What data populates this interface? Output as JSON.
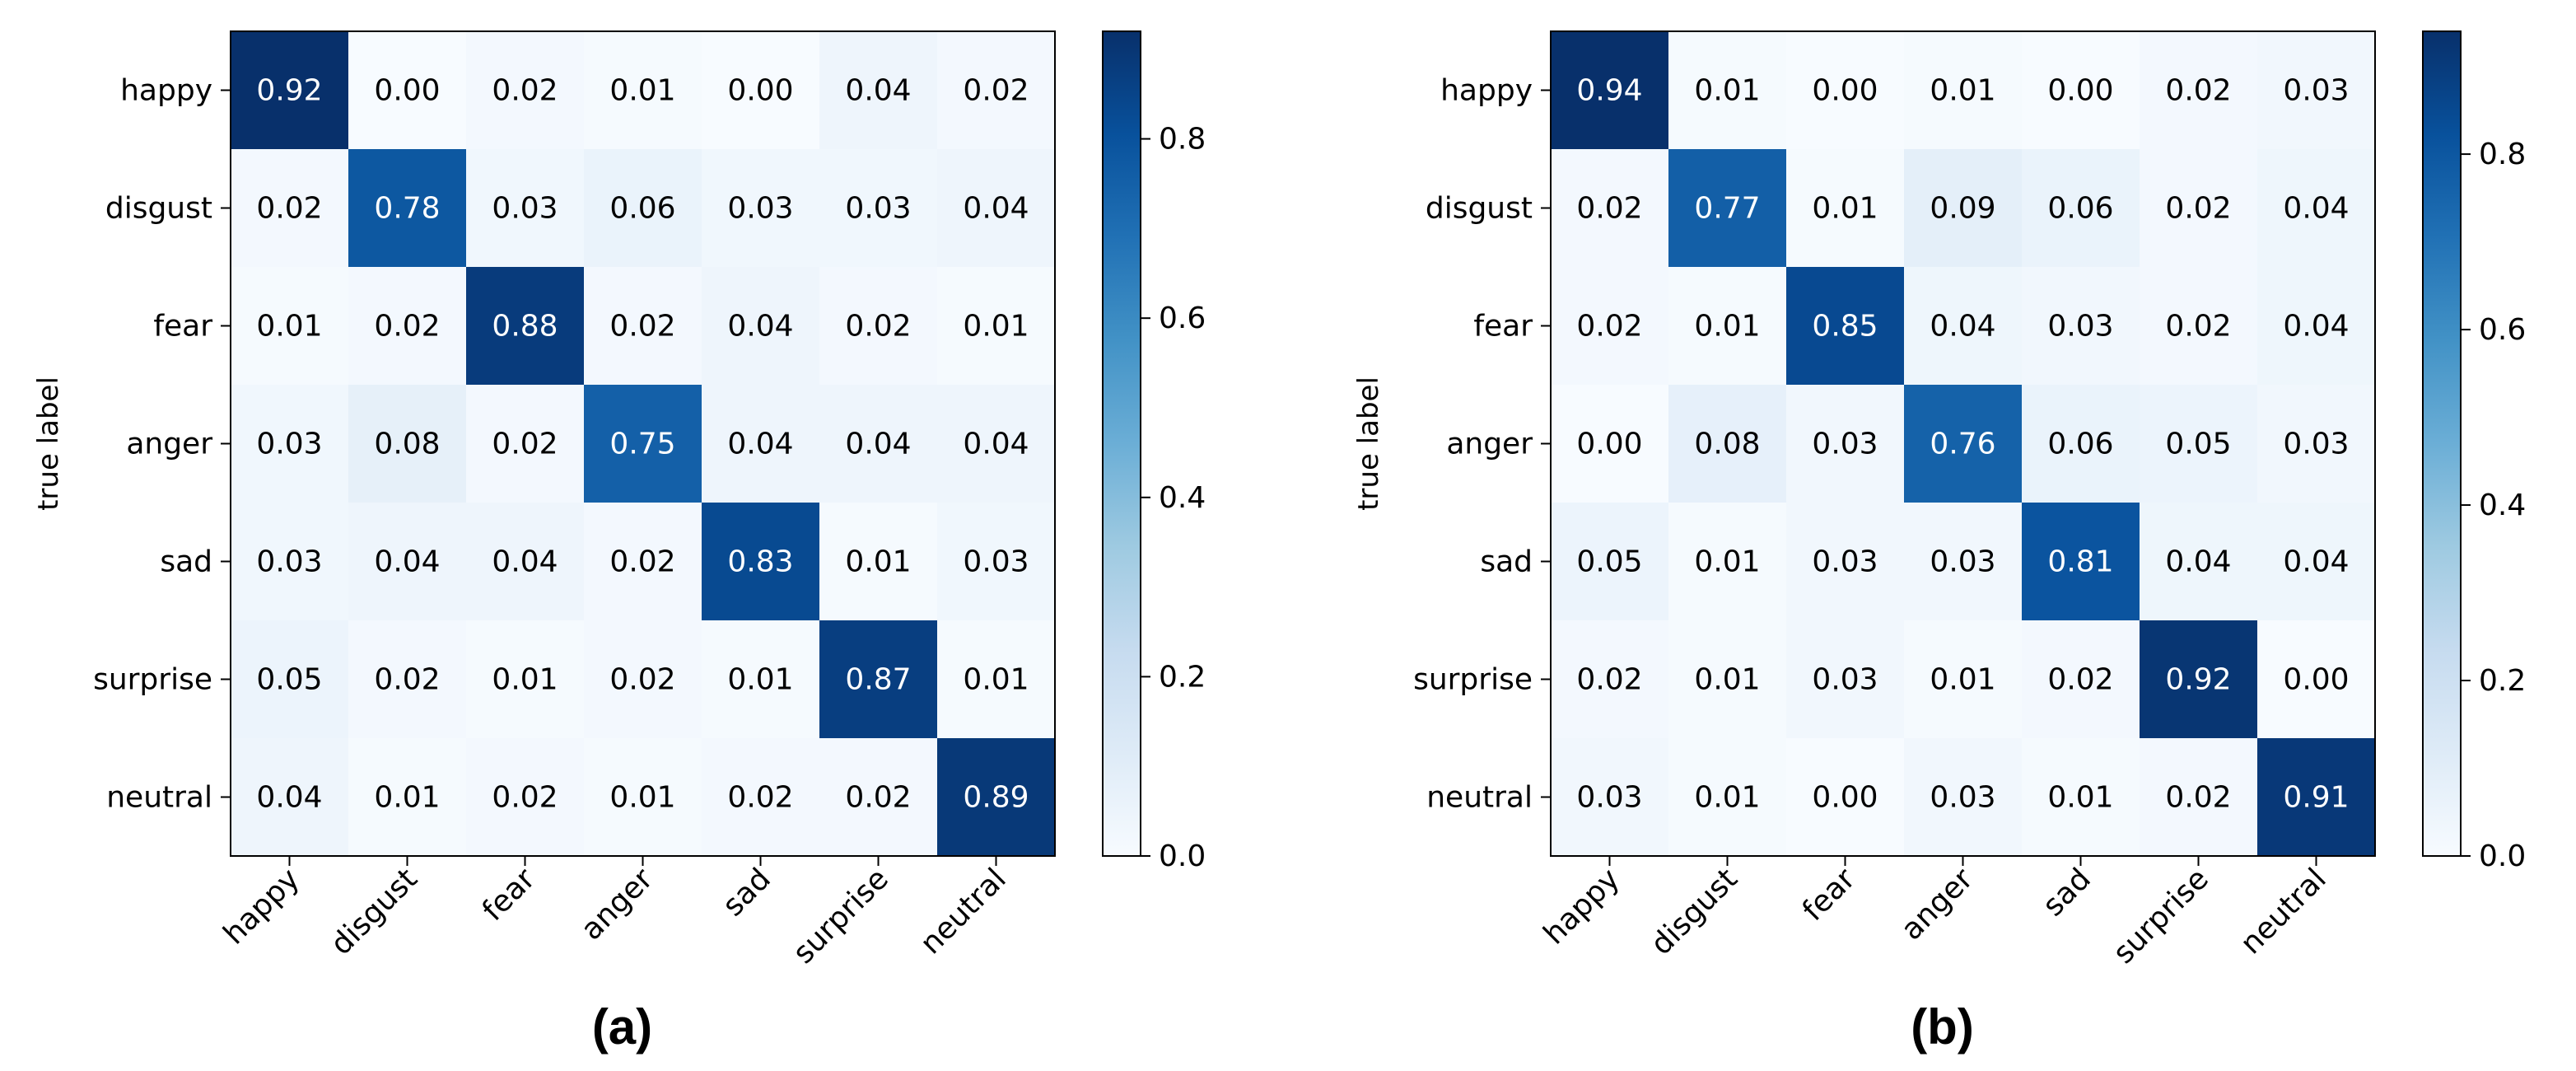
{
  "chart_data": [
    {
      "type": "heatmap",
      "panel_label": "(a)",
      "ylabel": "true label",
      "xlabel": "",
      "categories": [
        "happy",
        "disgust",
        "fear",
        "anger",
        "sad",
        "surprise",
        "neutral"
      ],
      "matrix": [
        [
          0.92,
          0.0,
          0.02,
          0.01,
          0.0,
          0.04,
          0.02
        ],
        [
          0.02,
          0.78,
          0.03,
          0.06,
          0.03,
          0.03,
          0.04
        ],
        [
          0.01,
          0.02,
          0.88,
          0.02,
          0.04,
          0.02,
          0.01
        ],
        [
          0.03,
          0.08,
          0.02,
          0.75,
          0.04,
          0.04,
          0.04
        ],
        [
          0.03,
          0.04,
          0.04,
          0.02,
          0.83,
          0.01,
          0.03
        ],
        [
          0.05,
          0.02,
          0.01,
          0.02,
          0.01,
          0.87,
          0.01
        ],
        [
          0.04,
          0.01,
          0.02,
          0.01,
          0.02,
          0.02,
          0.89
        ]
      ],
      "colorbar": {
        "range": [
          0.0,
          0.92
        ],
        "ticks": [
          "0.0",
          "0.2",
          "0.4",
          "0.6",
          "0.8"
        ],
        "colormap": "Blues"
      }
    },
    {
      "type": "heatmap",
      "panel_label": "(b)",
      "ylabel": "true label",
      "xlabel": "",
      "categories": [
        "happy",
        "disgust",
        "fear",
        "anger",
        "sad",
        "surprise",
        "neutral"
      ],
      "matrix": [
        [
          0.94,
          0.01,
          0.0,
          0.01,
          0.0,
          0.02,
          0.03
        ],
        [
          0.02,
          0.77,
          0.01,
          0.09,
          0.06,
          0.02,
          0.04
        ],
        [
          0.02,
          0.01,
          0.85,
          0.04,
          0.03,
          0.02,
          0.04
        ],
        [
          0.0,
          0.08,
          0.03,
          0.76,
          0.06,
          0.05,
          0.03
        ],
        [
          0.05,
          0.01,
          0.03,
          0.03,
          0.81,
          0.04,
          0.04
        ],
        [
          0.02,
          0.01,
          0.03,
          0.01,
          0.02,
          0.92,
          0.0
        ],
        [
          0.03,
          0.01,
          0.0,
          0.03,
          0.01,
          0.02,
          0.91
        ]
      ],
      "colorbar": {
        "range": [
          0.0,
          0.94
        ],
        "ticks": [
          "0.0",
          "0.2",
          "0.4",
          "0.6",
          "0.8"
        ],
        "colormap": "Blues"
      }
    }
  ]
}
